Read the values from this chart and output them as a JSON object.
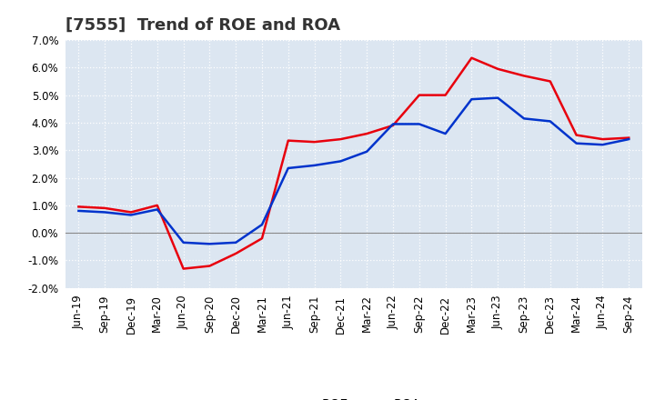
{
  "title": "[7555]  Trend of ROE and ROA",
  "x_labels": [
    "Jun-19",
    "Sep-19",
    "Dec-19",
    "Mar-20",
    "Jun-20",
    "Sep-20",
    "Dec-20",
    "Mar-21",
    "Jun-21",
    "Sep-21",
    "Dec-21",
    "Mar-22",
    "Jun-22",
    "Sep-22",
    "Dec-22",
    "Mar-23",
    "Jun-23",
    "Sep-23",
    "Dec-23",
    "Mar-24",
    "Jun-24",
    "Sep-24"
  ],
  "roe": [
    0.0095,
    0.009,
    0.0075,
    0.01,
    -0.013,
    -0.012,
    -0.0075,
    -0.002,
    0.0335,
    0.033,
    0.034,
    0.036,
    0.039,
    0.05,
    0.05,
    0.0635,
    0.0595,
    0.057,
    0.055,
    0.0355,
    0.034,
    0.0345
  ],
  "roa": [
    0.008,
    0.0075,
    0.0065,
    0.0085,
    -0.0035,
    -0.004,
    -0.0035,
    0.003,
    0.0235,
    0.0245,
    0.026,
    0.0295,
    0.0395,
    0.0395,
    0.036,
    0.0485,
    0.049,
    0.0415,
    0.0405,
    0.0325,
    0.032,
    0.034
  ],
  "roe_color": "#e8000d",
  "roa_color": "#0033cc",
  "ylim": [
    -0.02,
    0.07
  ],
  "yticks": [
    -0.02,
    -0.01,
    0.0,
    0.01,
    0.02,
    0.03,
    0.04,
    0.05,
    0.06,
    0.07
  ],
  "fig_bg_color": "#ffffff",
  "plot_bg_color": "#dce6f1",
  "grid_color": "#ffffff",
  "zero_line_color": "#888888",
  "linewidth": 1.8,
  "title_fontsize": 13,
  "legend_fontsize": 10,
  "tick_fontsize": 8.5
}
